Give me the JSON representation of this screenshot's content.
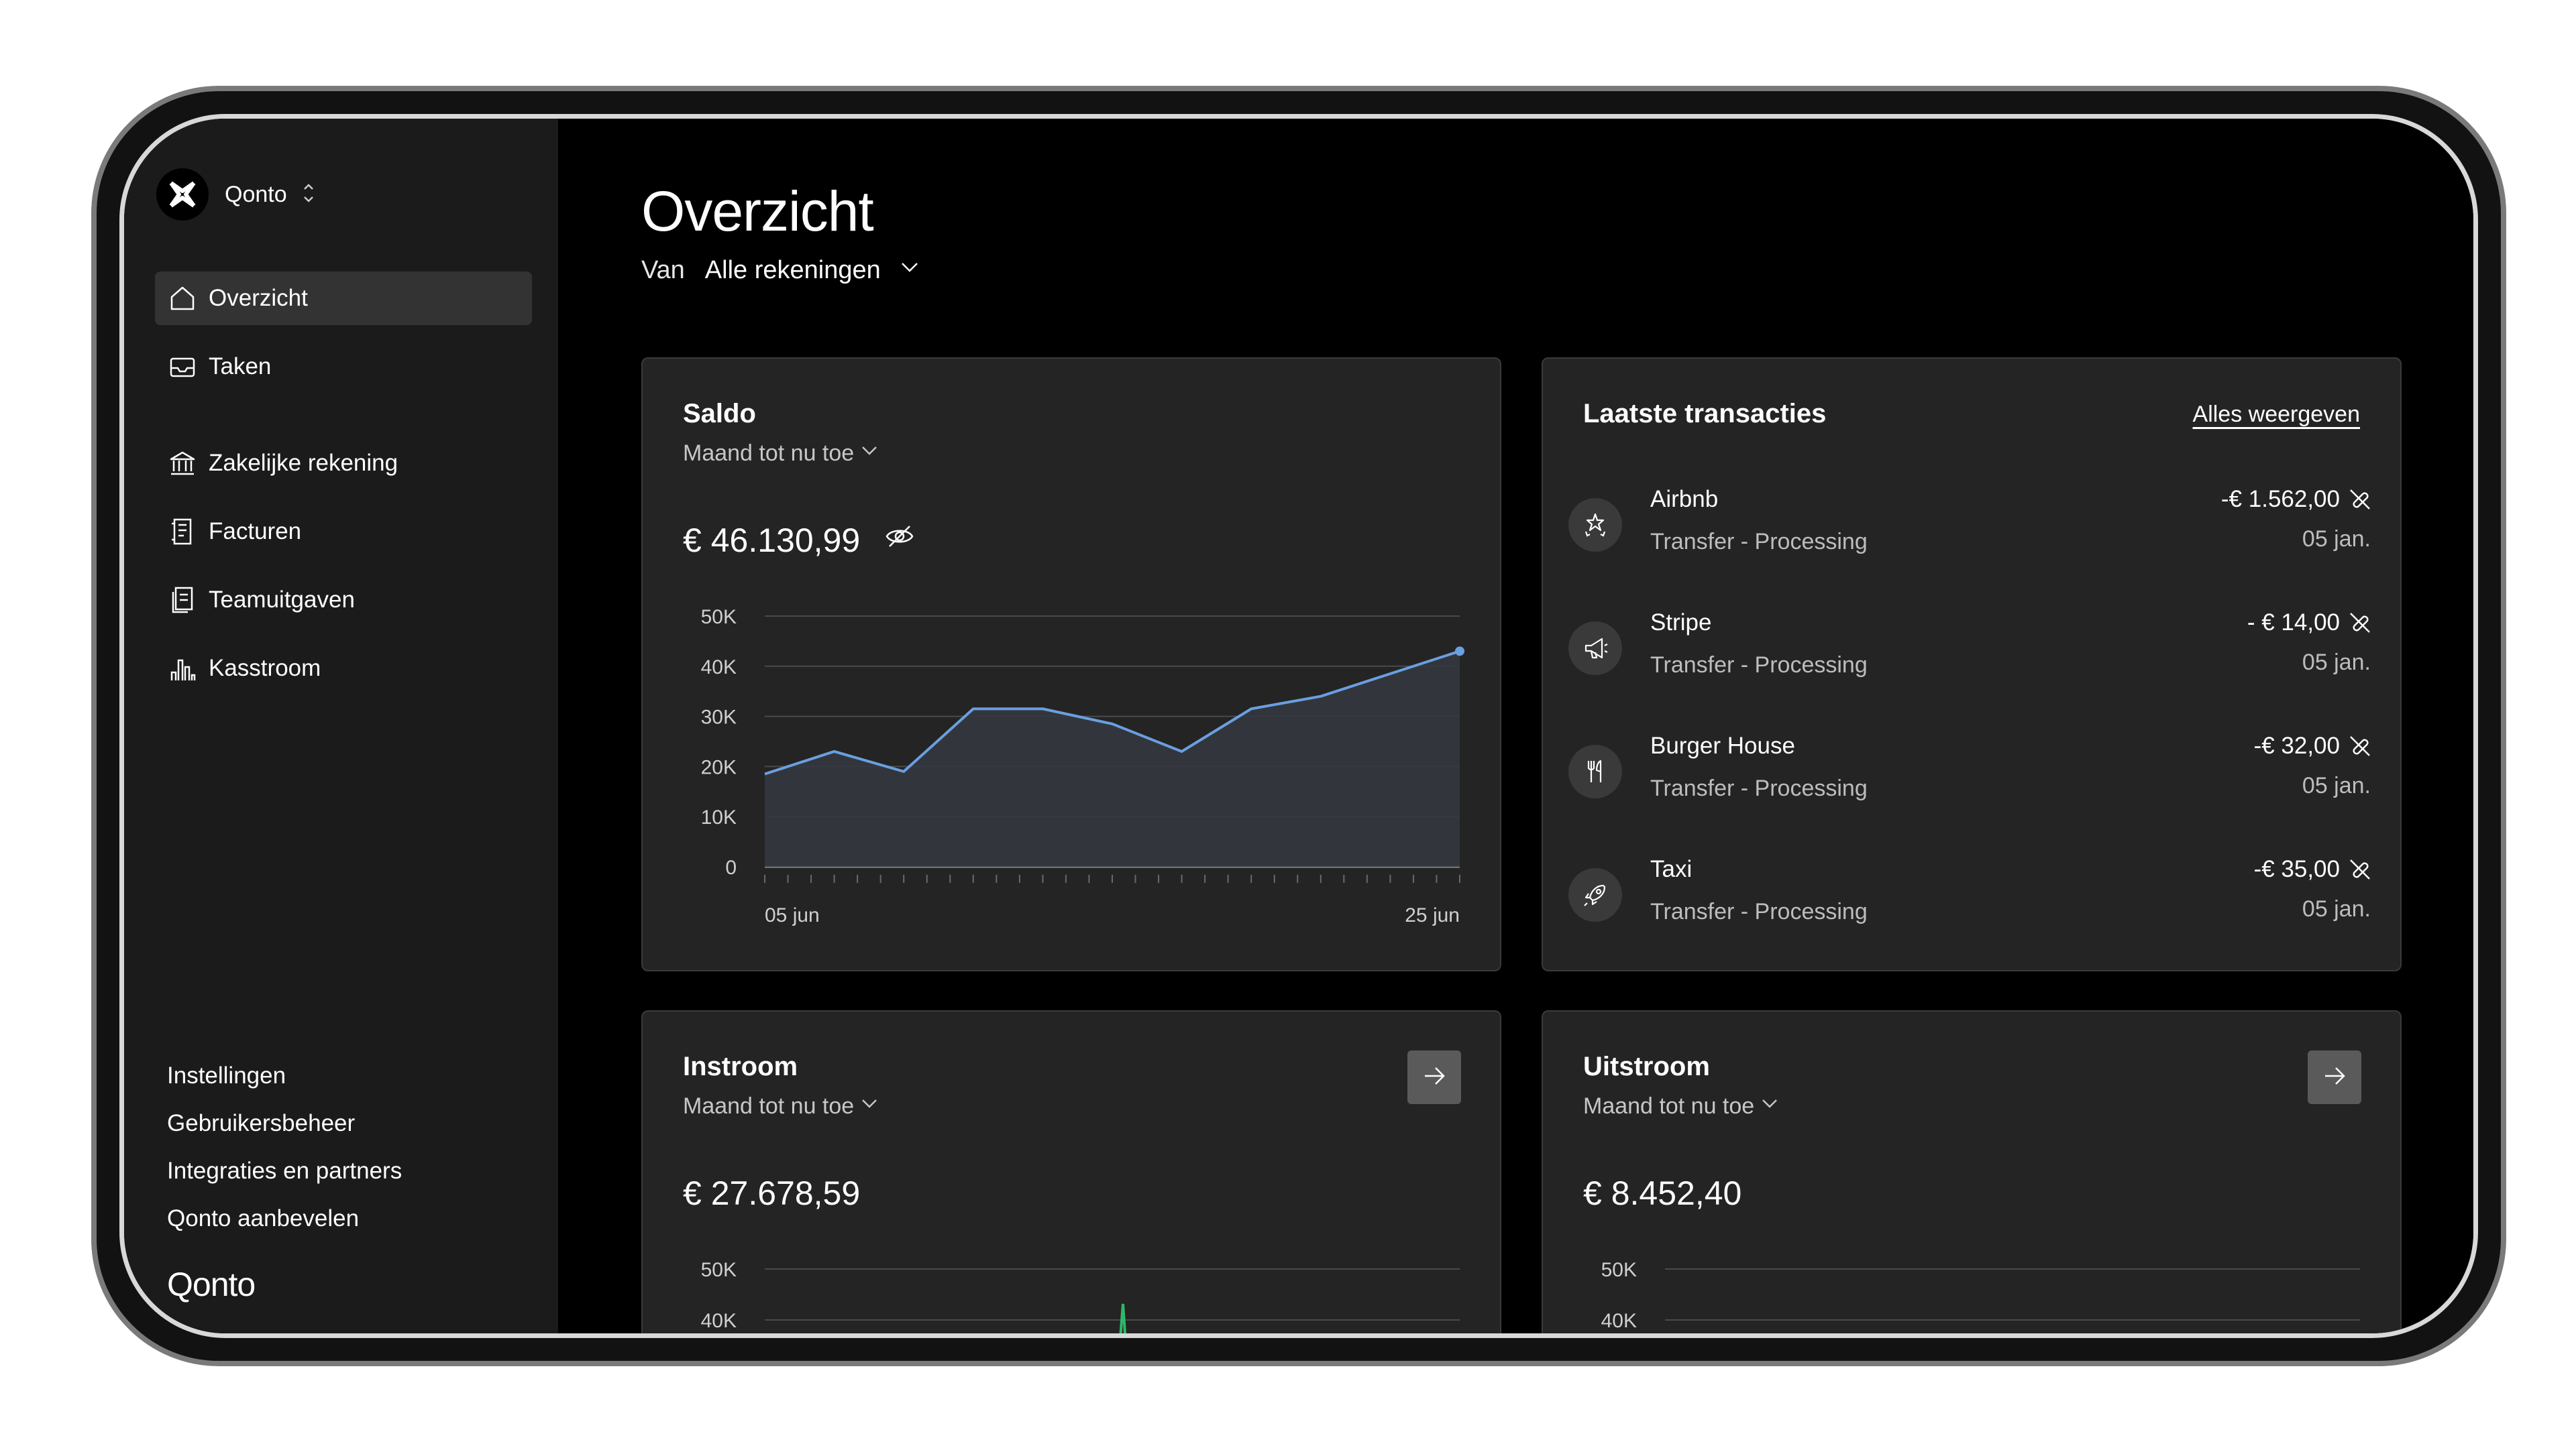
{
  "sidebar": {
    "org_name": "Qonto",
    "nav": [
      {
        "label": "Overzicht",
        "icon": "home-icon",
        "active": true
      },
      {
        "label": "Taken",
        "icon": "inbox-icon",
        "active": false
      },
      {
        "label": "Zakelijke rekening",
        "icon": "bank-icon",
        "active": false
      },
      {
        "label": "Facturen",
        "icon": "invoice-icon",
        "active": false
      },
      {
        "label": "Teamuitgaven",
        "icon": "team-expenses-icon",
        "active": false
      },
      {
        "label": "Kasstroom",
        "icon": "bar-chart-icon",
        "active": false
      }
    ],
    "footer_links": [
      "Instellingen",
      "Gebruikersbeheer",
      "Integraties en partners",
      "Qonto aanbevelen"
    ],
    "brand": "Qonto"
  },
  "header": {
    "title": "Overzicht",
    "filter_label": "Van",
    "filter_value": "Alle rekeningen"
  },
  "saldo": {
    "title": "Saldo",
    "period": "Maand tot nu toe",
    "amount": "€ 46.130,99"
  },
  "transactions": {
    "title": "Laatste transacties",
    "view_all": "Alles weergeven",
    "items": [
      {
        "name": "Airbnb",
        "status": "Transfer - Processing",
        "amount": "-€ 1.562,00",
        "date": "05 jan.",
        "icon": "sparkles-icon"
      },
      {
        "name": "Stripe",
        "status": "Transfer - Processing",
        "amount": "- € 14,00",
        "date": "05 jan.",
        "icon": "megaphone-icon"
      },
      {
        "name": "Burger House",
        "status": "Transfer - Processing",
        "amount": "-€ 32,00",
        "date": "05 jan.",
        "icon": "fork-knife-icon"
      },
      {
        "name": "Taxi",
        "status": "Transfer - Processing",
        "amount": "-€ 35,00",
        "date": "05 jan.",
        "icon": "rocket-icon"
      }
    ]
  },
  "instroom": {
    "title": "Instroom",
    "period": "Maand tot nu toe",
    "amount": "€ 27.678,59"
  },
  "uitstroom": {
    "title": "Uitstroom",
    "period": "Maand tot nu toe",
    "amount": "€ 8.452,40"
  },
  "chart_data": [
    {
      "type": "area",
      "title": "Saldo",
      "ylim": [
        0,
        50000
      ],
      "yticks": [
        "50K",
        "40K",
        "30K",
        "20K",
        "10K",
        "0"
      ],
      "xtick_labels": [
        "05 jun",
        "25 jun"
      ],
      "x": [
        "05 jun",
        "",
        "",
        "",
        "",
        "",
        "",
        "",
        "",
        "",
        "25 jun"
      ],
      "values": [
        18500,
        23000,
        19000,
        31500,
        31500,
        28500,
        23000,
        31500,
        34000,
        38500,
        43000
      ],
      "line_color": "#6a9fe0",
      "grid": true
    },
    {
      "type": "line",
      "title": "Instroom",
      "visible_yticks": [
        "50K",
        "40K"
      ],
      "line_color": "#2fb86a",
      "grid": true
    },
    {
      "type": "line",
      "title": "Uitstroom",
      "visible_yticks": [
        "50K",
        "40K"
      ],
      "grid": true
    }
  ]
}
